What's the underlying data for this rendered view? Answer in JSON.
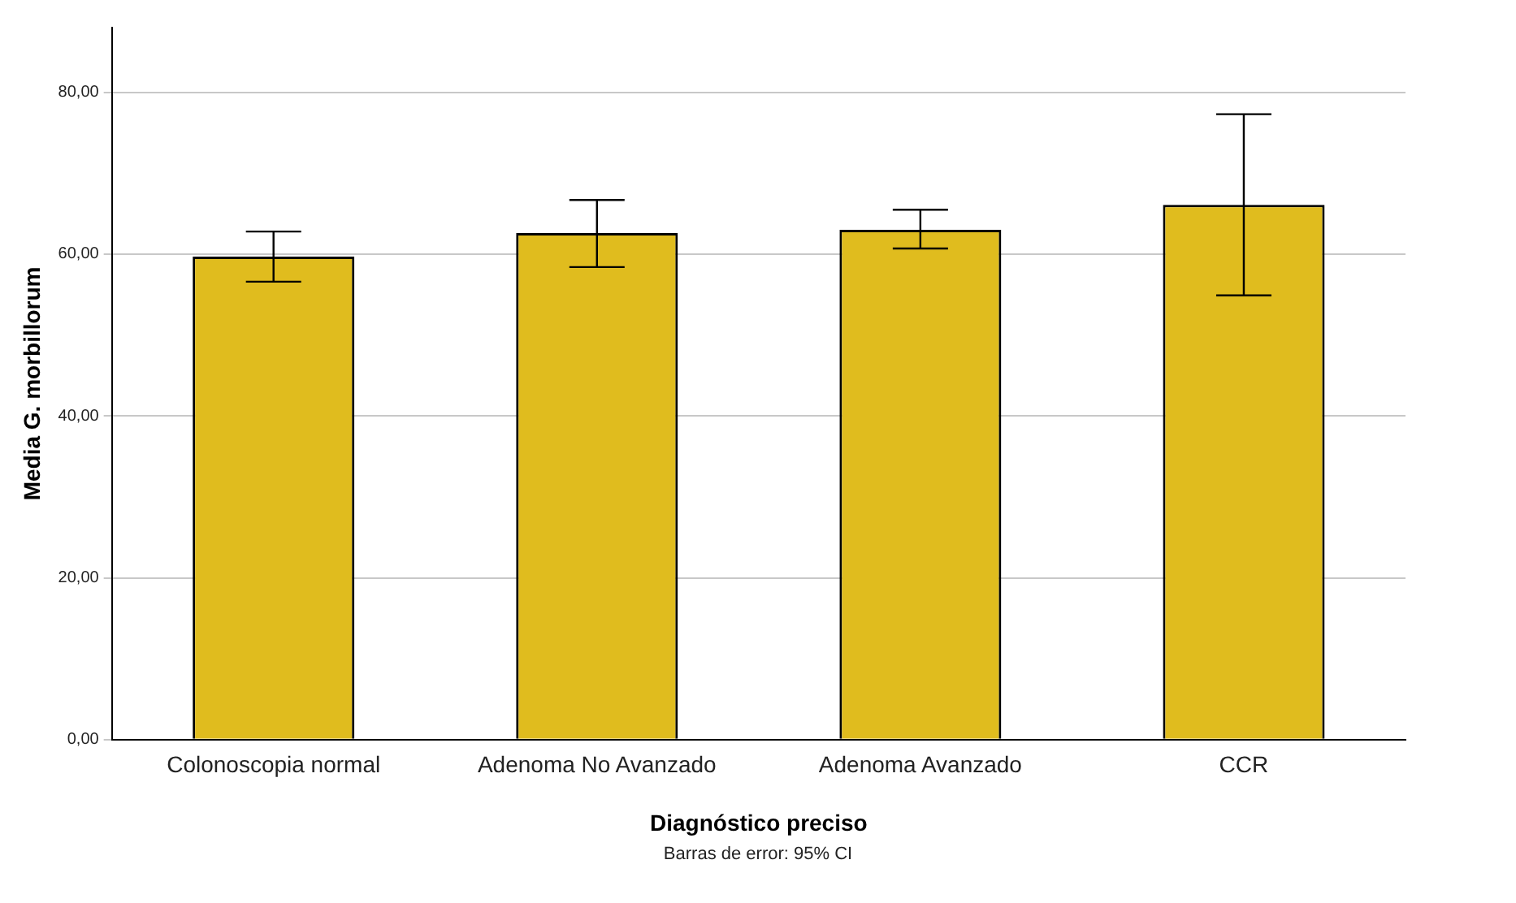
{
  "chart_data": {
    "type": "bar",
    "xlabel": "Diagnóstico preciso",
    "ylabel": "Media G. morbillorum",
    "categories": [
      "Colonoscopia normal",
      "Adenoma No Avanzado",
      "Adenoma Avanzado",
      "CCR"
    ],
    "values": [
      59.7,
      62.6,
      63.0,
      66.1
    ],
    "errors": [
      [
        56.6,
        62.8
      ],
      [
        58.4,
        66.7
      ],
      [
        60.7,
        65.5
      ],
      [
        54.9,
        77.3
      ]
    ],
    "color": "#e0bc1e",
    "ylim": [
      0,
      88
    ],
    "yticks": [
      {
        "value": 0,
        "label": "0,00"
      },
      {
        "value": 20,
        "label": "20,00"
      },
      {
        "value": 40,
        "label": "40,00"
      },
      {
        "value": 60,
        "label": "60,00"
      },
      {
        "value": 80,
        "label": "80,00"
      }
    ],
    "grid": "y",
    "annotations": [
      "Barras de error: 95% CI"
    ]
  }
}
